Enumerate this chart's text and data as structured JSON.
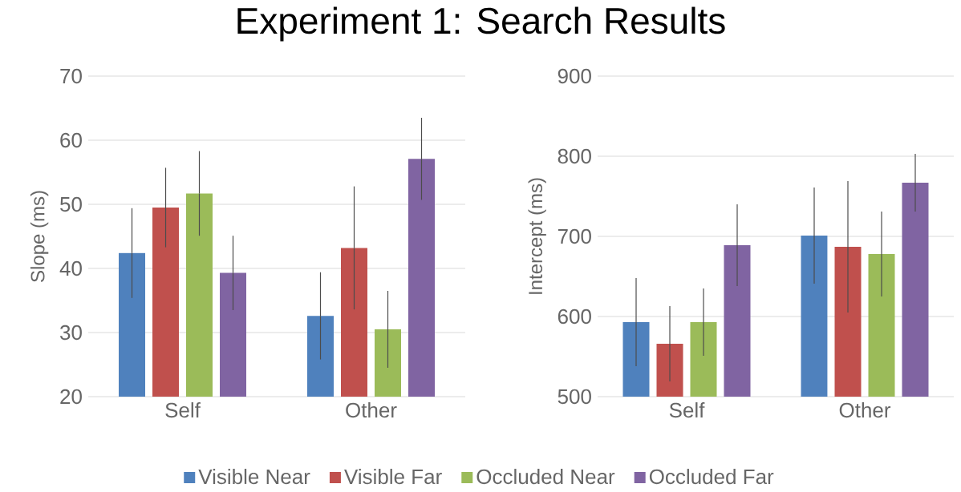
{
  "chart_data": [
    {
      "type": "bar",
      "title": "Experiment 1: Search Results",
      "ylabel": "Slope (ms)",
      "categories": [
        "Self",
        "Other"
      ],
      "ylim": [
        20,
        70
      ],
      "yticks": [
        20,
        30,
        40,
        50,
        60,
        70
      ],
      "grid": "y",
      "legend": "bottom",
      "series": [
        {
          "name": "Visible Near",
          "color": "#4f81bd",
          "values": [
            42.4,
            32.6
          ],
          "errors": [
            7,
            6.8
          ]
        },
        {
          "name": "Visible Far",
          "color": "#c0504d",
          "values": [
            49.5,
            43.2
          ],
          "errors": [
            6.2,
            9.6
          ]
        },
        {
          "name": "Occluded Near",
          "color": "#9bbb59",
          "values": [
            51.7,
            30.5
          ],
          "errors": [
            6.6,
            6
          ]
        },
        {
          "name": "Occluded Far",
          "color": "#8064a2",
          "values": [
            39.3,
            57.1
          ],
          "errors": [
            5.8,
            6.4
          ]
        }
      ]
    },
    {
      "type": "bar",
      "ylabel": "Intercept (ms)",
      "categories": [
        "Self",
        "Other"
      ],
      "ylim": [
        500,
        900
      ],
      "yticks": [
        500,
        600,
        700,
        800,
        900
      ],
      "grid": "y",
      "series": [
        {
          "color": "#4f81bd",
          "values": [
            593,
            701
          ],
          "errors": [
            55,
            60
          ]
        },
        {
          "color": "#c0504d",
          "values": [
            566,
            687
          ],
          "errors": [
            47,
            82
          ]
        },
        {
          "color": "#9bbb59",
          "values": [
            593,
            678
          ],
          "errors": [
            42,
            53
          ]
        },
        {
          "color": "#8064a2",
          "values": [
            689,
            767
          ],
          "errors": [
            51,
            36
          ]
        }
      ]
    }
  ]
}
